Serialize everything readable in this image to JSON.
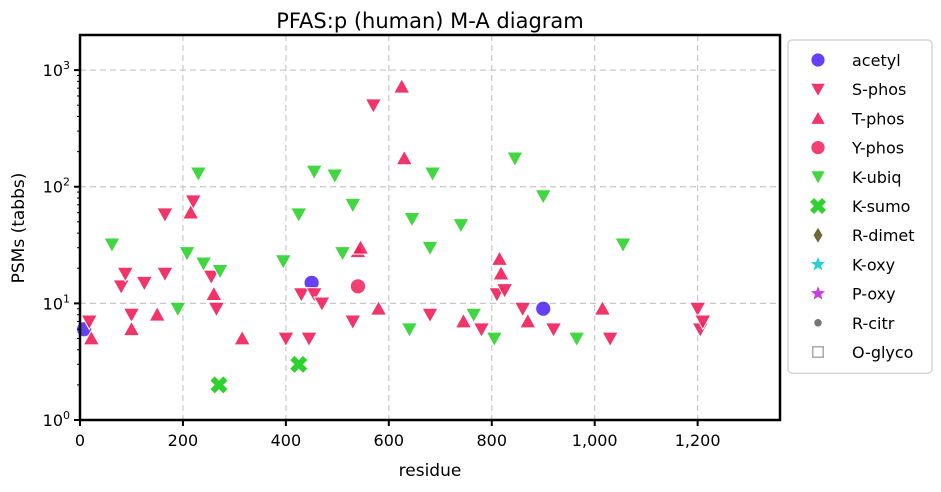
{
  "chart_data": {
    "type": "scatter",
    "title": "PFAS:p (human) M-A diagram",
    "xlabel": "residue",
    "ylabel": "PSMs (tabbs)",
    "xlim": [
      0,
      1360
    ],
    "ylim": [
      1,
      2000
    ],
    "yscale": "log",
    "grid": true,
    "legend_position": "right-outside",
    "x_ticks": [
      {
        "value": 0,
        "label": "0"
      },
      {
        "value": 200,
        "label": "200"
      },
      {
        "value": 400,
        "label": "400"
      },
      {
        "value": 600,
        "label": "600"
      },
      {
        "value": 800,
        "label": "800"
      },
      {
        "value": 1000,
        "label": "1,000"
      },
      {
        "value": 1200,
        "label": "1,200"
      }
    ],
    "y_ticks": [
      {
        "value": 1,
        "base": "10",
        "exp": "0"
      },
      {
        "value": 10,
        "base": "10",
        "exp": "1"
      },
      {
        "value": 100,
        "base": "10",
        "exp": "2"
      },
      {
        "value": 1000,
        "base": "10",
        "exp": "3"
      }
    ],
    "series": [
      {
        "name": "acetyl",
        "marker": "circle",
        "color": "#4b1ef2",
        "points": [
          [
            8,
            6
          ],
          [
            450,
            15
          ],
          [
            900,
            9
          ]
        ]
      },
      {
        "name": "S-phos",
        "marker": "triangle-down",
        "color": "#f01e5a",
        "points": [
          [
            18,
            7
          ],
          [
            80,
            14
          ],
          [
            88,
            18
          ],
          [
            100,
            8
          ],
          [
            125,
            15
          ],
          [
            165,
            18
          ],
          [
            165,
            58
          ],
          [
            220,
            75
          ],
          [
            255,
            17
          ],
          [
            265,
            9
          ],
          [
            400,
            5
          ],
          [
            430,
            12
          ],
          [
            445,
            5
          ],
          [
            455,
            12
          ],
          [
            470,
            10
          ],
          [
            530,
            7
          ],
          [
            570,
            500
          ],
          [
            680,
            8
          ],
          [
            780,
            6
          ],
          [
            810,
            12
          ],
          [
            825,
            13
          ],
          [
            860,
            9
          ],
          [
            920,
            6
          ],
          [
            1030,
            5
          ],
          [
            1200,
            9
          ],
          [
            1205,
            6
          ],
          [
            1210,
            7
          ]
        ]
      },
      {
        "name": "T-phos",
        "marker": "triangle-up",
        "color": "#f01e5a",
        "points": [
          [
            22,
            5
          ],
          [
            100,
            6
          ],
          [
            150,
            8
          ],
          [
            215,
            60
          ],
          [
            260,
            12
          ],
          [
            315,
            5
          ],
          [
            540,
            28
          ],
          [
            545,
            30
          ],
          [
            580,
            9
          ],
          [
            625,
            720
          ],
          [
            630,
            175
          ],
          [
            745,
            7
          ],
          [
            815,
            24
          ],
          [
            818,
            18
          ],
          [
            870,
            7
          ],
          [
            1015,
            9
          ]
        ]
      },
      {
        "name": "Y-phos",
        "marker": "circle",
        "color": "#f01e5a",
        "points": [
          [
            540,
            14
          ]
        ]
      },
      {
        "name": "K-ubiq",
        "marker": "triangle-down",
        "color": "#2fd12f",
        "points": [
          [
            62,
            32
          ],
          [
            190,
            9
          ],
          [
            208,
            27
          ],
          [
            230,
            130
          ],
          [
            240,
            22
          ],
          [
            272,
            19
          ],
          [
            395,
            23
          ],
          [
            425,
            58
          ],
          [
            455,
            135
          ],
          [
            495,
            125
          ],
          [
            510,
            27
          ],
          [
            530,
            70
          ],
          [
            640,
            6
          ],
          [
            645,
            53
          ],
          [
            680,
            30
          ],
          [
            685,
            130
          ],
          [
            740,
            47
          ],
          [
            765,
            8
          ],
          [
            805,
            5
          ],
          [
            845,
            175
          ],
          [
            900,
            83
          ],
          [
            965,
            5
          ],
          [
            1055,
            32
          ]
        ]
      },
      {
        "name": "K-sumo",
        "marker": "x",
        "color": "#2fd12f",
        "points": [
          [
            270,
            2
          ],
          [
            425,
            3
          ]
        ]
      },
      {
        "name": "R-dimet",
        "marker": "diamond",
        "color": "#6f6a3a",
        "points": []
      },
      {
        "name": "K-oxy",
        "marker": "star",
        "color": "#2ad1d1",
        "points": []
      },
      {
        "name": "P-oxy",
        "marker": "star",
        "color": "#c83ee0",
        "points": []
      },
      {
        "name": "R-citr",
        "marker": "dot",
        "color": "#777777",
        "points": []
      },
      {
        "name": "O-glyco",
        "marker": "square-open",
        "color": "#aaaaaa",
        "points": []
      }
    ]
  }
}
